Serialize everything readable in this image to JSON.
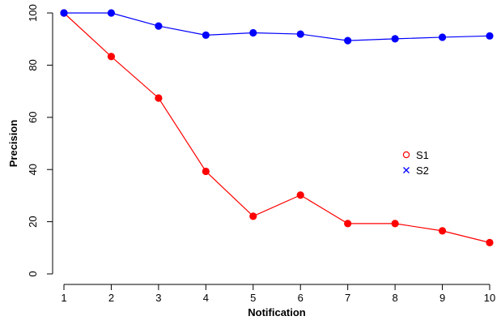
{
  "chart_data": {
    "type": "line",
    "title": "",
    "xlabel": "Notification",
    "ylabel": "Precision",
    "x": [
      1,
      2,
      3,
      4,
      5,
      6,
      7,
      8,
      9,
      10
    ],
    "xlim": [
      1,
      10
    ],
    "ylim": [
      0,
      100
    ],
    "x_ticks": [
      "1",
      "2",
      "3",
      "4",
      "5",
      "6",
      "7",
      "8",
      "9",
      "10"
    ],
    "y_ticks": [
      "0",
      "20",
      "40",
      "60",
      "80",
      "100"
    ],
    "grid": false,
    "legend_position": "right",
    "series": [
      {
        "name": "S1",
        "color": "#ff0000",
        "legend_marker": "open-circle",
        "marker": "filled-circle",
        "values": [
          100,
          83.3,
          67.4,
          39.3,
          22.1,
          30.2,
          19.3,
          19.3,
          16.5,
          12.0
        ]
      },
      {
        "name": "S2",
        "color": "#0000ff",
        "legend_marker": "cross",
        "marker": "filled-circle",
        "values": [
          100,
          100,
          95.0,
          91.5,
          92.4,
          91.9,
          89.4,
          90.1,
          90.7,
          91.2
        ]
      }
    ]
  }
}
